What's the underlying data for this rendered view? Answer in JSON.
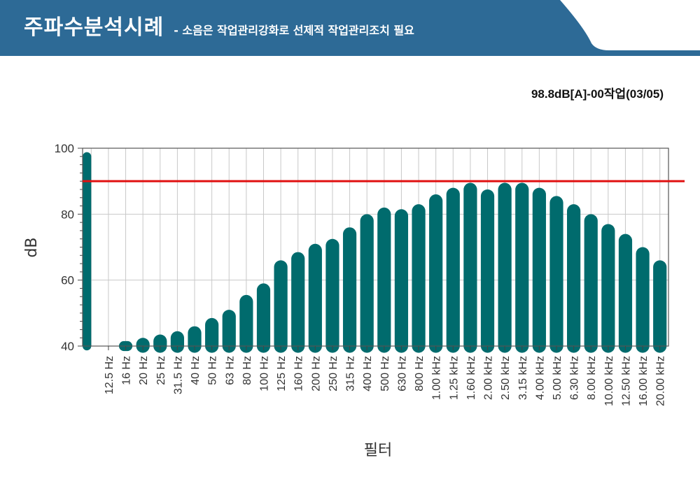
{
  "header": {
    "title": "주파수분석시례",
    "subtitle": "- 소음은 작업관리강화로 선제적 작업관리조치 필요",
    "band_color": "#2d6a96"
  },
  "caption": "98.8dB[A]-00작업(03/05)",
  "chart_data": {
    "type": "bar",
    "title": "",
    "xlabel": "필터",
    "ylabel": "dB",
    "ylim": [
      40,
      100
    ],
    "yticks": [
      "40",
      "60",
      "80",
      "100"
    ],
    "categories": [
      "",
      "12.5 Hz",
      "16 Hz",
      "20 Hz",
      "25 Hz",
      "31.5 Hz",
      "40 Hz",
      "50 Hz",
      "63 Hz",
      "80 Hz",
      "100 Hz",
      "125 Hz",
      "160 Hz",
      "200 Hz",
      "250 Hz",
      "315 Hz",
      "400 Hz",
      "500 Hz",
      "630 Hz",
      "800 Hz",
      "1.00 kHz",
      "1.25 kHz",
      "1.60 kHz",
      "2.00 kHz",
      "2.50 kHz",
      "3.15 kHz",
      "4.00 kHz",
      "5.00 kHz",
      "6.30 kHz",
      "8.00 kHz",
      "10.00 kHz",
      "12.50 kHz",
      "16.00 kHz",
      "20.00 kHz"
    ],
    "values": [
      98.8,
      40,
      41.5,
      42.5,
      43.5,
      44.5,
      46,
      48.5,
      51,
      55.5,
      59,
      66,
      68.5,
      71,
      72.5,
      76,
      80,
      82,
      81.5,
      83,
      86,
      88,
      89.5,
      87.5,
      89.5,
      89.5,
      88,
      85.5,
      83,
      80,
      77,
      74,
      70,
      66
    ],
    "reference_line": 90,
    "bar_color": "#006b6d",
    "reference_color": "#e01010",
    "grid": true
  }
}
